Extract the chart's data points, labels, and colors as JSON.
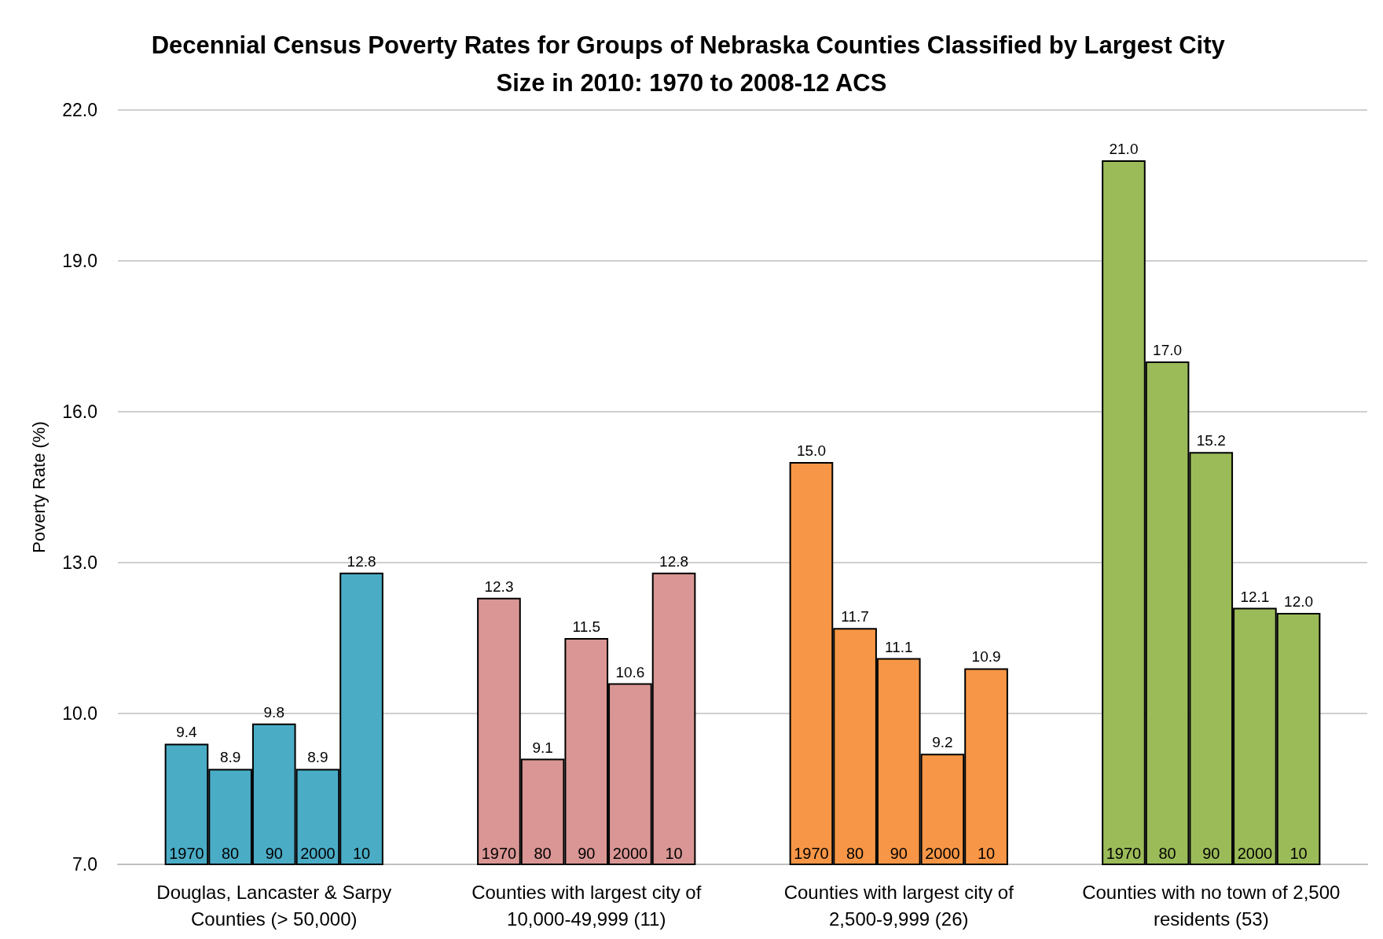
{
  "chart_data": {
    "type": "bar",
    "title": "Decennial Census Poverty Rates for Groups of Nebraska Counties Classified by Largest City Size in 2010: 1970 to 2008-12 ACS",
    "ylabel": "Poverty Rate (%)",
    "categories": [
      "Douglas, Lancaster & Sarpy Counties (> 50,000)",
      "Counties with largest city of 10,000-49,999 (11)",
      "Counties with largest city of 2,500-9,999 (26)",
      "Counties with no town of 2,500 residents (53)"
    ],
    "series": [
      {
        "name": "1970",
        "colors": [
          "#4bacc6",
          "#d99694",
          "#f79646",
          "#9bbb59"
        ],
        "values": [
          9.4,
          12.3,
          15.0,
          21.0
        ],
        "value_labels": [
          "9.4",
          "12.3",
          "15.0",
          "21.0"
        ]
      },
      {
        "name": "80",
        "colors": [
          "#4bacc6",
          "#d99694",
          "#f79646",
          "#9bbb59"
        ],
        "values": [
          8.9,
          9.1,
          11.7,
          17.0
        ],
        "value_labels": [
          "8.9",
          "9.1",
          "11.7",
          "17.0"
        ]
      },
      {
        "name": "90",
        "colors": [
          "#4bacc6",
          "#d99694",
          "#f79646",
          "#9bbb59"
        ],
        "values": [
          9.8,
          11.5,
          11.1,
          15.2
        ],
        "value_labels": [
          "9.8",
          "11.5",
          "11.1",
          "15.2"
        ]
      },
      {
        "name": "2000",
        "colors": [
          "#4bacc6",
          "#d99694",
          "#f79646",
          "#9bbb59"
        ],
        "values": [
          8.9,
          10.6,
          9.2,
          12.1
        ],
        "value_labels": [
          "8.9",
          "10.6",
          "9.2",
          "12.1"
        ]
      },
      {
        "name": "10",
        "colors": [
          "#4bacc6",
          "#d99694",
          "#f79646",
          "#9bbb59"
        ],
        "values": [
          12.8,
          12.8,
          10.9,
          12.0
        ],
        "value_labels": [
          "12.8",
          "12.8",
          "10.9",
          "12.0"
        ]
      }
    ],
    "ylim": [
      7,
      22
    ],
    "yticks": [
      {
        "value": 7,
        "label": "7.0"
      },
      {
        "value": 10,
        "label": "10.0"
      },
      {
        "value": 13,
        "label": "13.0"
      },
      {
        "value": 16,
        "label": "16.0"
      },
      {
        "value": 19,
        "label": "19.0"
      },
      {
        "value": 22,
        "label": "22.0"
      }
    ],
    "grid": "y",
    "legend": false
  }
}
